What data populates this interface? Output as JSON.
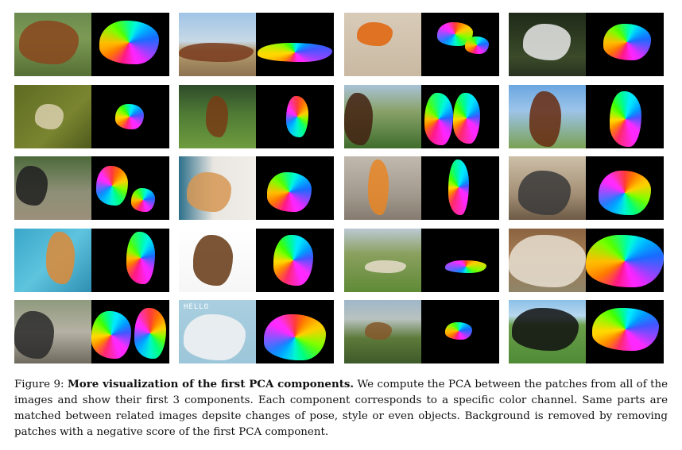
{
  "figure": {
    "label": "Figure 9:",
    "bold_title": "More visualization of the first PCA components.",
    "body": "We compute the PCA between the patches from all of the images and show their first 3 components. Each component corresponds to a specific color channel. Same parts are matched between related images depsite changes of pose, style or even objects. Background is removed by removing patches with a negative score of the first PCA component."
  },
  "cartoon_text": "HELLO",
  "pairs": [
    {
      "name": "cow-field",
      "bg": "linear-gradient(180deg,#6b8a4e 0%,#7d9a55 40%,#556f34 100%)",
      "subject": "#7a4a2c"
    },
    {
      "name": "horses-running",
      "bg": "linear-gradient(180deg,#9fc4e6 0%,#c7d9e6 45%,#b79d70 60%,#8c7250 100%)",
      "subject": "#6b3f2a"
    },
    {
      "name": "horse-sketch",
      "bg": "linear-gradient(180deg,#d8cbb8,#c9b9a2)",
      "subject": "#c46a2a"
    },
    {
      "name": "white-horse",
      "bg": "linear-gradient(180deg,#1e2a18,#3b4a2a 70%,#2a3320)",
      "subject": "#e8e8e8"
    },
    {
      "name": "sheep-aerial",
      "bg": "linear-gradient(135deg,#5e6b22,#7a8530 60%,#4f5a1c)",
      "subject": "#d7d0b8"
    },
    {
      "name": "horse-rider",
      "bg": "linear-gradient(180deg,#2f4a2a 0%,#4e7a35 45%,#6f9c3e 100%)",
      "subject": "#6a3f23"
    },
    {
      "name": "horse-race",
      "bg": "linear-gradient(180deg,#a9c3d8 0%,#8aa36b 40%,#3f6d2c 100%)",
      "subject": "#3b2418"
    },
    {
      "name": "horse-portrait",
      "bg": "linear-gradient(180deg,#6aa6e0 0%,#9dc4ea 40%,#7aa152 100%)",
      "subject": "#5a2e1b"
    },
    {
      "name": "dogs-playing",
      "bg": "linear-gradient(180deg,#4c6a3a 0%,#8d8f76 55%,#9b8f7a 100%)",
      "subject": "#1f1f1f"
    },
    {
      "name": "bulldog",
      "bg": "linear-gradient(90deg,#2c6f8a 0%,#e9e6e1 45%,#f1eee9 100%)",
      "subject": "#c79a6a"
    },
    {
      "name": "corgi-window",
      "bg": "linear-gradient(180deg,#c2b9ae,#a39a8e 60%,#857b70)",
      "subject": "#d08a45"
    },
    {
      "name": "party-dogs",
      "bg": "linear-gradient(180deg,#cdbfa8,#a38f75 60%,#6d5a45)",
      "subject": "#3a3a3a"
    },
    {
      "name": "dog-pool",
      "bg": "linear-gradient(135deg,#3aa6c9,#5ec4de 50%,#2f8fb2)",
      "subject": "#c98d52"
    },
    {
      "name": "puppy",
      "bg": "linear-gradient(180deg,#ffffff,#f6f6f6)",
      "subject": "#5a3a20"
    },
    {
      "name": "sheep-herding",
      "bg": "linear-gradient(180deg,#bcc9d3 0%,#8aa05e 40%,#5f8a36 100%)",
      "subject": "#e4ddd0"
    },
    {
      "name": "sheep-barn",
      "bg": "linear-gradient(180deg,#8a6440 0%,#a47a52 40%,#8f8468 100%)",
      "subject": "#e6e0d6"
    },
    {
      "name": "goats-flock",
      "bg": "linear-gradient(180deg,#8f9a7d,#b5b2a4 50%,#6e6a5e)",
      "subject": "#2b2b2b"
    },
    {
      "name": "cartoon-cow",
      "bg": "linear-gradient(180deg,#a9cfe0,#9cc6d9)",
      "subject": "#f4f4f4"
    },
    {
      "name": "mountain-hikers",
      "bg": "linear-gradient(180deg,#9fb7c9 0%,#b9c2c0 30%,#5d7a3a 60%,#3f5a2a 100%)",
      "subject": "#7a5a3a"
    },
    {
      "name": "black-white-cow",
      "bg": "linear-gradient(180deg,#8cc0e8 0%,#b8d8ee 25%,#6aa04a 40%,#4f8a36 100%)",
      "subject": "#111111"
    }
  ]
}
